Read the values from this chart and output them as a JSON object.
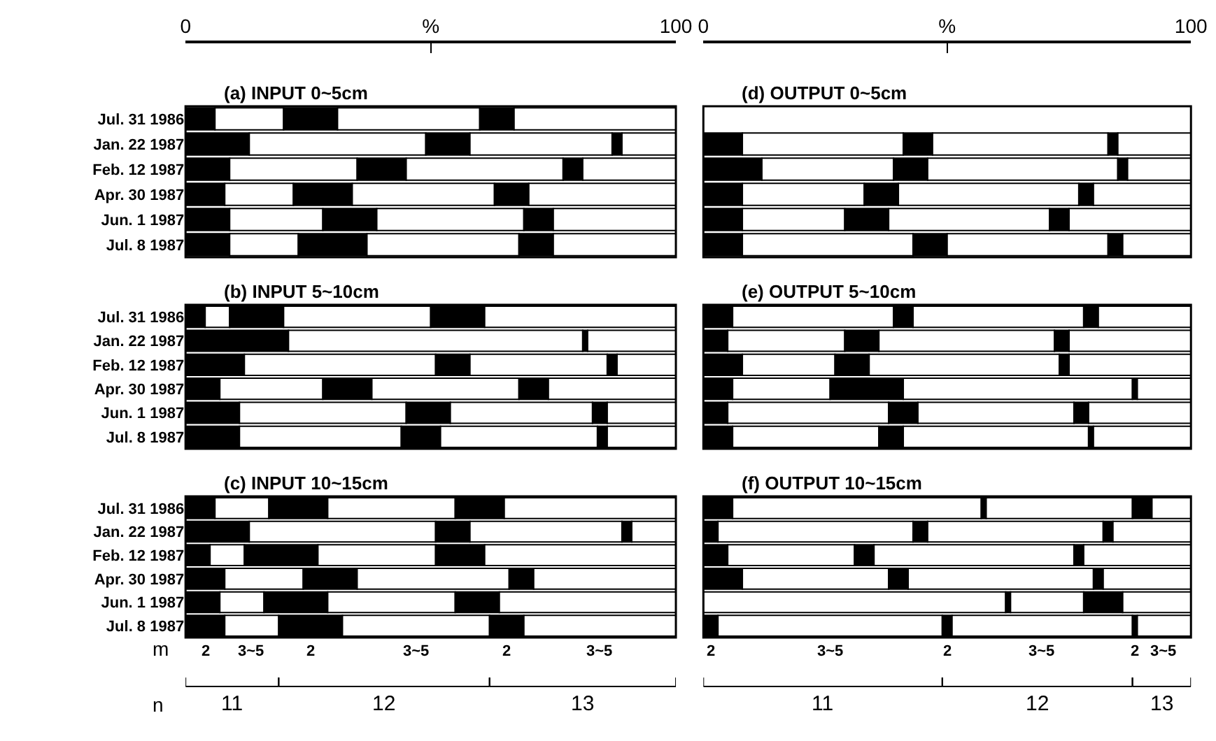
{
  "chart_data": [
    {
      "type": "bar",
      "orientation": "horizontal",
      "stacked": true,
      "title": "(a) INPUT 0~5cm",
      "categories": [
        "Jul. 31 1986",
        "Jan. 22 1987",
        "Feb. 12 1987",
        "Apr. 30 1987",
        "Jun. 1 1987",
        "Jul. 8 1987"
      ],
      "xlim": [
        0,
        100
      ],
      "xticks": [
        0,
        {
          "value": 50,
          "label": "%"
        },
        100
      ],
      "series": [
        {
          "color": "#000000",
          "values": [
            6,
            13,
            9,
            8,
            9,
            9
          ]
        },
        {
          "color": "#ffffff",
          "values": [
            14,
            36,
            26,
            14,
            19,
            14
          ]
        },
        {
          "color": "#000000",
          "values": [
            11,
            9,
            10,
            12,
            11,
            14
          ]
        },
        {
          "color": "#ffffff",
          "values": [
            29,
            29,
            32,
            29,
            30,
            31
          ]
        },
        {
          "color": "#000000",
          "values": [
            7,
            2,
            4,
            7,
            6,
            7
          ]
        },
        {
          "color": "#ffffff",
          "values": [
            33,
            11,
            19,
            30,
            25,
            25
          ]
        }
      ]
    },
    {
      "type": "bar",
      "orientation": "horizontal",
      "stacked": true,
      "title": "(d) OUTPUT 0~5cm",
      "categories": [
        "Jul. 31 1986",
        "Jan. 22 1987",
        "Feb. 12 1987",
        "Apr. 30 1987",
        "Jun. 1 1987",
        "Jul. 8 1987"
      ],
      "xlim": [
        0,
        100
      ],
      "xticks": [
        0,
        {
          "value": 50,
          "label": "%"
        },
        100
      ],
      "tick_labels": "x",
      "series": [
        {
          "color": "#000000",
          "values": [
            null,
            8,
            12,
            8,
            8,
            8
          ]
        },
        {
          "color": "#ffffff",
          "values": [
            null,
            33,
            27,
            25,
            21,
            35
          ]
        },
        {
          "color": "#000000",
          "values": [
            null,
            6,
            7,
            7,
            9,
            7
          ]
        },
        {
          "color": "#ffffff",
          "values": [
            null,
            36,
            39,
            37,
            33,
            33
          ]
        },
        {
          "color": "#000000",
          "values": [
            null,
            2,
            2,
            3,
            4,
            3
          ]
        },
        {
          "color": "#ffffff",
          "values": [
            null,
            15,
            13,
            20,
            25,
            14
          ]
        }
      ]
    },
    {
      "type": "bar",
      "orientation": "horizontal",
      "stacked": true,
      "title": "(b) INPUT 5~10cm",
      "categories": [
        "Jul. 31 1986",
        "Jan. 22 1987",
        "Feb. 12 1987",
        "Apr. 30 1987",
        "Jun. 1 1987",
        "Jul. 8 1987"
      ],
      "xlim": [
        0,
        100
      ],
      "tick_labels": "y",
      "series": [
        {
          "color": "#000000",
          "values": [
            4,
            21,
            12,
            7,
            11,
            11
          ]
        },
        {
          "color": "#ffffff",
          "values": [
            5,
            0,
            39,
            21,
            34,
            33
          ]
        },
        {
          "color": "#000000",
          "values": [
            11,
            0,
            7,
            10,
            9,
            8
          ]
        },
        {
          "color": "#ffffff",
          "values": [
            30,
            60,
            28,
            30,
            29,
            32
          ]
        },
        {
          "color": "#000000",
          "values": [
            11,
            1,
            2,
            6,
            3,
            2
          ]
        },
        {
          "color": "#ffffff",
          "values": [
            39,
            18,
            12,
            26,
            14,
            14
          ]
        }
      ]
    },
    {
      "type": "bar",
      "orientation": "horizontal",
      "stacked": true,
      "title": "(e) OUTPUT 5~10cm",
      "categories": [
        "Jul. 31 1986",
        "Jan. 22 1987",
        "Feb. 12 1987",
        "Apr. 30 1987",
        "Jun. 1 1987",
        "Jul. 8 1987"
      ],
      "xlim": [
        0,
        100
      ],
      "tick_labels": false,
      "series": [
        {
          "color": "#000000",
          "values": [
            6,
            5,
            8,
            6,
            5,
            6
          ]
        },
        {
          "color": "#ffffff",
          "values": [
            33,
            24,
            19,
            20,
            33,
            30
          ]
        },
        {
          "color": "#000000",
          "values": [
            4,
            7,
            7,
            15,
            6,
            5
          ]
        },
        {
          "color": "#ffffff",
          "values": [
            35,
            36,
            39,
            47,
            32,
            38
          ]
        },
        {
          "color": "#000000",
          "values": [
            3,
            3,
            2,
            1,
            3,
            1
          ]
        },
        {
          "color": "#ffffff",
          "values": [
            19,
            25,
            25,
            11,
            21,
            20
          ]
        }
      ]
    },
    {
      "type": "bar",
      "orientation": "horizontal",
      "stacked": true,
      "title": "(c) INPUT 10~15cm",
      "categories": [
        "Jul. 31 1986",
        "Jan. 22 1987",
        "Feb. 12 1987",
        "Apr. 30 1987",
        "Jun. 1 1987",
        "Jul. 8 1987"
      ],
      "xlim": [
        0,
        100
      ],
      "tick_labels": "y",
      "annotations": [
        "m",
        "2",
        "3~5",
        "2",
        "3~5",
        "2",
        "3~5",
        "n",
        "11",
        "12",
        "13"
      ],
      "series": [
        {
          "color": "#000000",
          "values": [
            6,
            13,
            5,
            8,
            7,
            8
          ]
        },
        {
          "color": "#ffffff",
          "values": [
            11,
            38,
            7,
            16,
            9,
            11
          ]
        },
        {
          "color": "#000000",
          "values": [
            12,
            7,
            15,
            11,
            13,
            13
          ]
        },
        {
          "color": "#ffffff",
          "values": [
            26,
            31,
            24,
            31,
            26,
            30
          ]
        },
        {
          "color": "#000000",
          "values": [
            10,
            2,
            10,
            5,
            9,
            7
          ]
        },
        {
          "color": "#ffffff",
          "values": [
            35,
            9,
            39,
            29,
            36,
            31
          ]
        }
      ]
    },
    {
      "type": "bar",
      "orientation": "horizontal",
      "stacked": true,
      "title": "(f) OUTPUT 10~15cm",
      "categories": [
        "Jul. 31 1986",
        "Jan. 22 1987",
        "Feb. 12 1987",
        "Apr. 30 1987",
        "Jun. 1 1987",
        "Jul. 8 1987"
      ],
      "xlim": [
        0,
        100
      ],
      "tick_labels": false,
      "annotations": [
        "2",
        "3~5",
        "2",
        "3~5",
        "2",
        "3~5",
        "11",
        "12",
        "13"
      ],
      "series": [
        {
          "color": "#000000",
          "values": [
            6,
            3,
            5,
            8,
            0,
            3
          ]
        },
        {
          "color": "#ffffff",
          "values": [
            51,
            40,
            26,
            30,
            62,
            46
          ]
        },
        {
          "color": "#000000",
          "values": [
            1,
            3,
            4,
            4,
            1,
            2
          ]
        },
        {
          "color": "#ffffff",
          "values": [
            30,
            36,
            41,
            38,
            15,
            37
          ]
        },
        {
          "color": "#000000",
          "values": [
            4,
            2,
            2,
            2,
            8,
            1
          ]
        },
        {
          "color": "#ffffff",
          "values": [
            8,
            16,
            22,
            18,
            14,
            11
          ]
        }
      ]
    }
  ]
}
